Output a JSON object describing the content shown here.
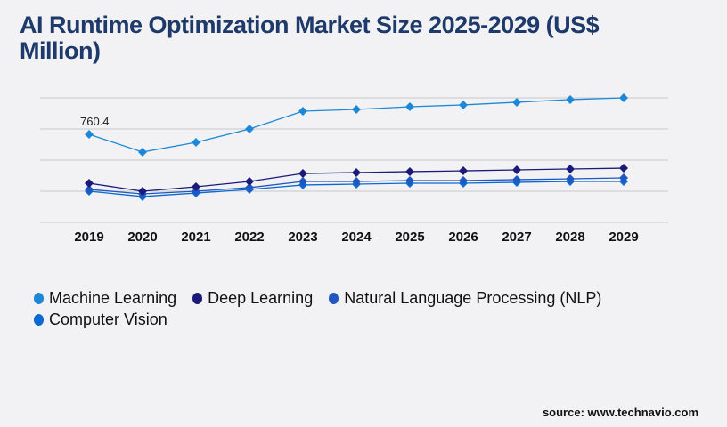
{
  "chart_data": {
    "type": "line",
    "title": "AI Runtime Optimization Market Size 2025-2029 (US$ Million)",
    "xlabel": "",
    "ylabel": "",
    "categories": [
      "2019",
      "2020",
      "2021",
      "2022",
      "2023",
      "2024",
      "2025",
      "2026",
      "2027",
      "2028",
      "2029"
    ],
    "ylim": [
      0,
      1075
    ],
    "grid": true,
    "legend_position": "bottom",
    "series": [
      {
        "name": "Machine Learning",
        "color": "#1e88d8",
        "values": [
          760.4,
          607,
          691,
          806,
          960,
          975,
          998,
          1014,
          1037,
          1060,
          1075
        ]
      },
      {
        "name": "Deep Learning",
        "color": "#1b1a78",
        "values": [
          338,
          269,
          307,
          353,
          422,
          430,
          438,
          445,
          453,
          461,
          468
        ]
      },
      {
        "name": "Natural Language Processing (NLP)",
        "color": "#1f56c0",
        "values": [
          284,
          246,
          269,
          300,
          353,
          353,
          361,
          361,
          369,
          376,
          384
        ]
      },
      {
        "name": "Computer Vision",
        "color": "#0a6ad0",
        "values": [
          269,
          223,
          253,
          284,
          323,
          330,
          338,
          338,
          346,
          353,
          353
        ]
      }
    ],
    "annotations": [
      {
        "series": "Machine Learning",
        "category": "2019",
        "text": "760.4"
      }
    ]
  },
  "source": "source: www.technavio.com"
}
